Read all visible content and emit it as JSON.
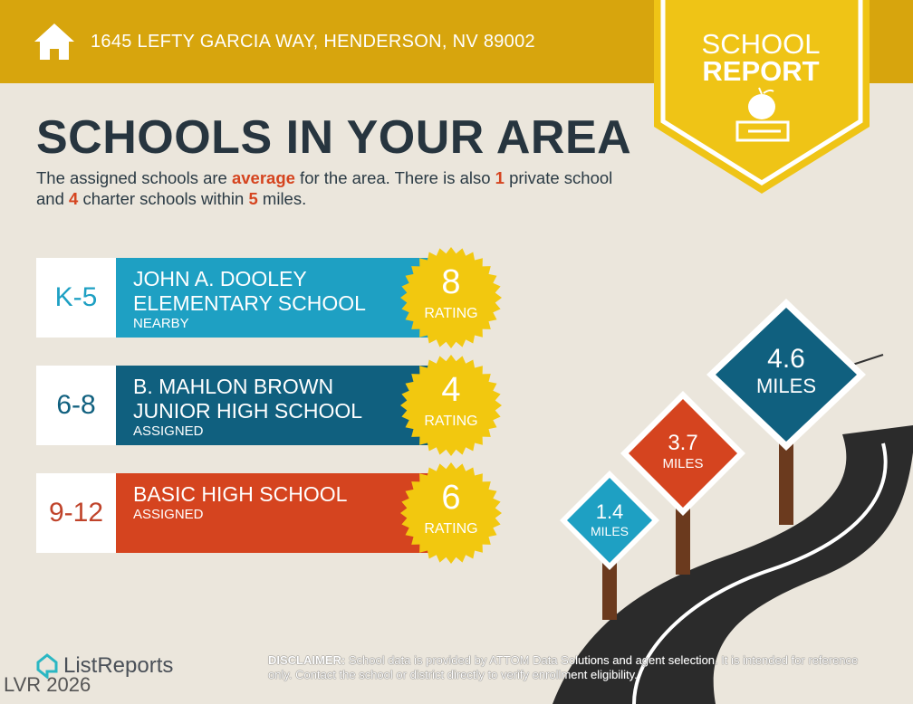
{
  "header": {
    "address": "1645 LEFTY GARCIA WAY, HENDERSON, NV 89002",
    "icon": "home-icon"
  },
  "badge": {
    "line1": "SCHOOL",
    "line2": "REPORT",
    "icon": "apple-on-book-icon"
  },
  "title": "SCHOOLS IN YOUR AREA",
  "intro": {
    "p1": "The assigned schools are ",
    "quality": "average",
    "p2": " for the area. There is also ",
    "private_count": "1",
    "p3": " private school and ",
    "charter_count": "4",
    "p4": " charter schools within ",
    "miles": "5",
    "p5": " miles."
  },
  "schools": [
    {
      "grade": "K-5",
      "name1": "JOHN A. DOOLEY",
      "name2": "ELEMENTARY SCHOOL",
      "status": "NEARBY",
      "rating": "8",
      "rating_label": "RATING",
      "color": "#1ea0c3",
      "grade_color": "#1ea0c3"
    },
    {
      "grade": "6-8",
      "name1": "B. MAHLON BROWN",
      "name2": "JUNIOR HIGH SCHOOL",
      "status": "ASSIGNED",
      "rating": "4",
      "rating_label": "RATING",
      "color": "#10607f",
      "grade_color": "#10607f"
    },
    {
      "grade": "9-12",
      "name1": "BASIC HIGH SCHOOL",
      "name2": "",
      "status": "ASSIGNED",
      "rating": "6",
      "rating_label": "RATING",
      "color": "#d5441f",
      "grade_color": "#c0432a"
    }
  ],
  "signs": [
    {
      "value": "1.4",
      "unit": "MILES",
      "color": "#1ea0c3"
    },
    {
      "value": "3.7",
      "unit": "MILES",
      "color": "#d5441f"
    },
    {
      "value": "4.6",
      "unit": "MILES",
      "color": "#10607f"
    }
  ],
  "footer": {
    "brand": "ListReports",
    "watermark": "LVR 2026",
    "disclaimer_label": "DISCLAIMER:",
    "disclaimer": " School data is provided by ATTOM Data Solutions and agent selection. It is intended for reference only. Contact the school or district directly to verify enrollment eligibility."
  },
  "colors": {
    "header": "#d7a50d",
    "badge": "#efc416",
    "star": "#f2c80f",
    "text": "#27353f",
    "accent": "#d5441f"
  }
}
